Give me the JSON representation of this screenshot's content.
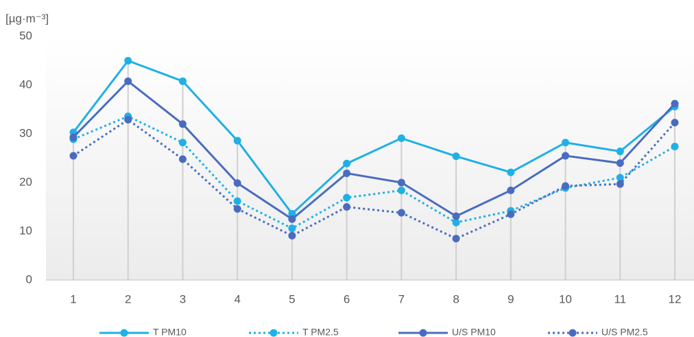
{
  "chart_data": {
    "type": "line",
    "y_label": "[µg·m⁻³]",
    "categories": [
      "1",
      "2",
      "3",
      "4",
      "5",
      "6",
      "7",
      "8",
      "9",
      "10",
      "11",
      "12"
    ],
    "ylim": [
      0,
      50
    ],
    "yticks": [
      0,
      10,
      20,
      30,
      40,
      50
    ],
    "series": [
      {
        "name": "T PM10",
        "color": "#1fb0e6",
        "style": "solid",
        "values": [
          30.3,
          45,
          40.8,
          28.6,
          13.6,
          23.9,
          29.1,
          25.4,
          22.1,
          28.2,
          26.4,
          35.6
        ]
      },
      {
        "name": "T PM2.5",
        "color": "#1fb0e6",
        "style": "dotted",
        "values": [
          28.9,
          33.6,
          28.2,
          16.2,
          10.6,
          16.9,
          18.4,
          11.8,
          14.2,
          18.9,
          21,
          27.4
        ]
      },
      {
        "name": "U/S PM10",
        "color": "#4a6cc0",
        "style": "solid",
        "values": [
          29.3,
          40.8,
          32,
          19.9,
          12.5,
          21.9,
          20,
          13.1,
          18.4,
          25.5,
          24,
          36.2
        ]
      },
      {
        "name": "U/S PM2.5",
        "color": "#4a6cc0",
        "style": "dotted",
        "values": [
          25.5,
          32.9,
          24.8,
          14.6,
          9.1,
          15,
          13.8,
          8.5,
          13.5,
          19.3,
          19.7,
          32.3
        ]
      }
    ]
  }
}
